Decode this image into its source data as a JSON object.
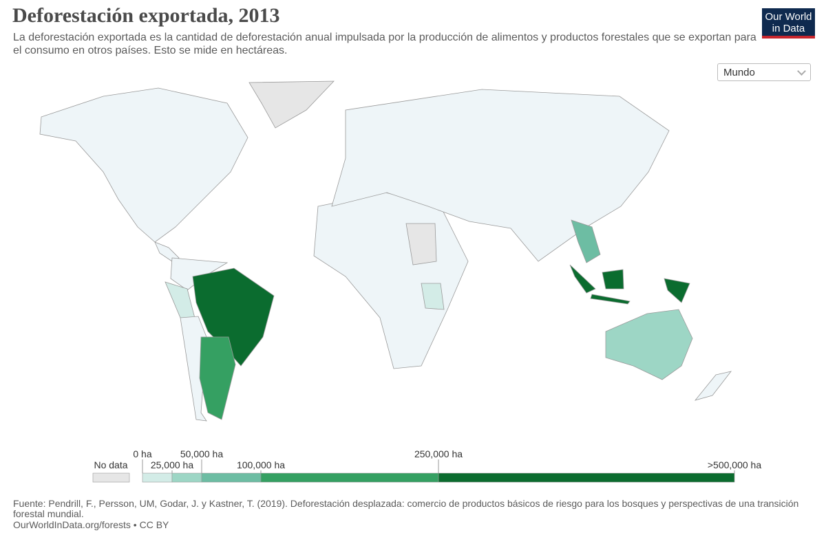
{
  "header": {
    "title": "Deforestación exportada, 2013",
    "subtitle": "La deforestación exportada es la cantidad de deforestación anual impulsada por la producción de alimentos y productos forestales que se exportan para el consumo en otros países. Esto se mide en hectáreas.",
    "logo": "Our World in Data"
  },
  "selector": "Mundo",
  "legend": {
    "no_data": "No data",
    "no_data_color": "#e6e6e6",
    "ticks": [
      {
        "value": 0,
        "label": "0 ha"
      },
      {
        "value": 25000,
        "label": "25,000 ha"
      },
      {
        "value": 50000,
        "label": "50,000 ha"
      },
      {
        "value": 100000,
        "label": "100,000 ha"
      },
      {
        "value": 250000,
        "label": "250,000 ha"
      },
      {
        "value": 500000,
        "label": ">500,000 ha"
      }
    ],
    "colors": [
      "#d3ece7",
      "#9dd6c5",
      "#6dbda3",
      "#35a062",
      "#0b6c2f"
    ],
    "base_color": "#eef5f8"
  },
  "footer": {
    "source": "Fuente: Pendrill, F., Persson, UM, Godar, J. y Kastner, T. (2019). Deforestación desplazada: comercio de productos básicos de riesgo para los bosques y perspectivas de una transición forestal mundial.",
    "url": "OurWorldInData.org/forests • CC BY"
  }
}
